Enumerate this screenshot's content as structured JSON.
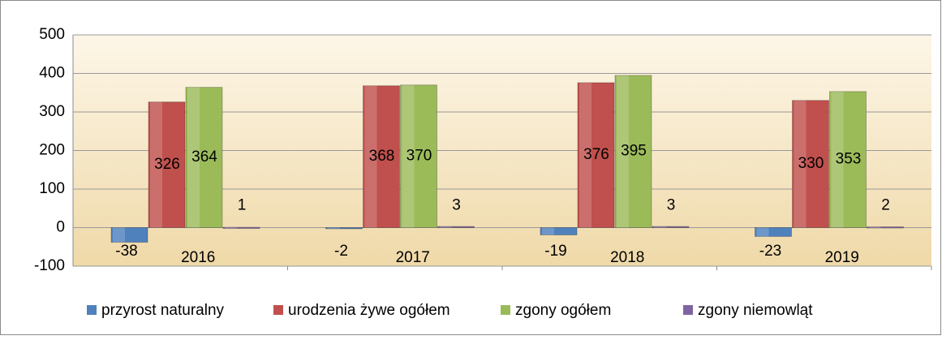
{
  "chart_data": {
    "type": "bar",
    "categories": [
      "2016",
      "2017",
      "2018",
      "2019"
    ],
    "series": [
      {
        "name": "przyrost naturalny",
        "color": "#4f81bd",
        "values": [
          -38,
          -2,
          -19,
          -23
        ]
      },
      {
        "name": "urodzenia żywe ogółem",
        "color": "#c0504d",
        "values": [
          326,
          368,
          376,
          330
        ]
      },
      {
        "name": "zgony ogółem",
        "color": "#9bbb59",
        "values": [
          364,
          370,
          395,
          353
        ]
      },
      {
        "name": "zgony niemowląt",
        "color": "#8064a2",
        "values": [
          1,
          3,
          3,
          2
        ]
      }
    ],
    "ylim": [
      -100,
      500
    ],
    "yticks": [
      -100,
      0,
      100,
      200,
      300,
      400,
      500
    ],
    "grid": true,
    "legend": "bottom"
  }
}
